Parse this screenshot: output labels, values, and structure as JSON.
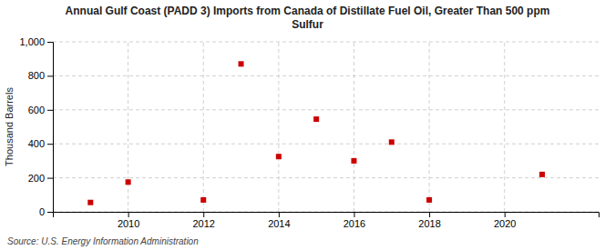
{
  "chart_data": {
    "type": "scatter",
    "title": "Annual Gulf Coast (PADD 3) Imports from Canada of Distillate Fuel Oil, Greater Than 500 ppm\nSulfur",
    "ylabel": "Thousand Barrels",
    "source": "Source: U.S. Energy Information Administration",
    "x": [
      2009,
      2010,
      2012,
      2013,
      2014,
      2015,
      2016,
      2017,
      2018,
      2021
    ],
    "values": [
      55,
      175,
      70,
      870,
      325,
      545,
      300,
      410,
      70,
      220
    ],
    "color": "#cc0000",
    "marker": "square",
    "xlim": [
      2008.0,
      2022.5
    ],
    "ylim": [
      0,
      1000
    ],
    "xticks": [
      2010,
      2012,
      2014,
      2016,
      2018,
      2020
    ],
    "yticks": [
      0,
      200,
      400,
      600,
      800,
      {
        "value": 1000,
        "label": "1,000"
      }
    ],
    "grid": true
  }
}
